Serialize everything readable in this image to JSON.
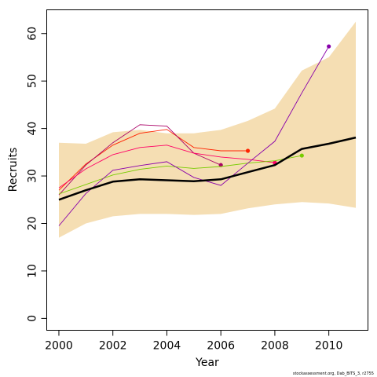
{
  "chart_data": {
    "type": "line",
    "title": "",
    "xlabel": "Year",
    "ylabel": "Recruits",
    "xlim": [
      1999.55,
      2011.45
    ],
    "ylim": [
      -2.5,
      65
    ],
    "x_ticks": [
      2000,
      2002,
      2004,
      2006,
      2008,
      2010
    ],
    "y_ticks": [
      0,
      10,
      20,
      30,
      40,
      50,
      60
    ],
    "grid": false,
    "legend": "none",
    "band": {
      "x": [
        2000,
        2001,
        2002,
        2003,
        2004,
        2005,
        2006,
        2007,
        2008,
        2009,
        2010,
        2011
      ],
      "lower": [
        17.0,
        20.0,
        21.5,
        22.0,
        22.0,
        21.8,
        22.0,
        23.2,
        24.0,
        24.5,
        24.2,
        23.3
      ],
      "upper": [
        37.0,
        36.8,
        39.2,
        39.7,
        39.0,
        39.0,
        39.7,
        41.6,
        44.2,
        52.2,
        55.0,
        62.5
      ],
      "color": "#f5deb3"
    },
    "main_series": {
      "x": [
        2000,
        2001,
        2002,
        2003,
        2004,
        2005,
        2006,
        2007,
        2008,
        2009,
        2010,
        2011
      ],
      "values": [
        25.0,
        27.0,
        28.8,
        29.3,
        29.1,
        28.9,
        29.3,
        30.8,
        32.3,
        35.7,
        36.8,
        38.1
      ],
      "color": "#000000"
    },
    "retro_series": [
      {
        "x": [
          2000,
          2001,
          2002,
          2003,
          2004,
          2005,
          2006,
          2007
        ],
        "values": [
          27.0,
          32.5,
          36.5,
          39.0,
          39.8,
          36.0,
          35.3,
          35.3
        ],
        "color": "#ff2200"
      },
      {
        "x": [
          2000,
          2001,
          2002,
          2003,
          2004,
          2005,
          2006
        ],
        "values": [
          26.0,
          32.3,
          37.0,
          40.8,
          40.5,
          34.8,
          32.3
        ],
        "color": "#aa0066"
      },
      {
        "x": [
          2000,
          2001,
          2002,
          2003,
          2004,
          2005,
          2006,
          2007,
          2008
        ],
        "values": [
          27.5,
          31.5,
          34.5,
          36.0,
          36.5,
          34.8,
          34.0,
          33.5,
          32.8
        ],
        "color": "#ff0066"
      },
      {
        "x": [
          2000,
          2001,
          2002,
          2003,
          2004,
          2005,
          2006,
          2007,
          2008,
          2009
        ],
        "values": [
          26.2,
          28.2,
          30.2,
          31.4,
          32.1,
          31.6,
          32.0,
          32.7,
          33.2,
          34.3
        ],
        "color": "#77cc00"
      },
      {
        "x": [
          2000,
          2001,
          2002,
          2003,
          2004,
          2005,
          2006,
          2007,
          2008,
          2009,
          2010
        ],
        "values": [
          19.5,
          26.3,
          31.2,
          32.2,
          33.0,
          29.7,
          28.0,
          32.7,
          37.3,
          47.5,
          57.3
        ],
        "color": "#8800aa"
      }
    ]
  },
  "footer": {
    "credit": "stockassessment.org, Dab_BITS_3, r2755"
  }
}
